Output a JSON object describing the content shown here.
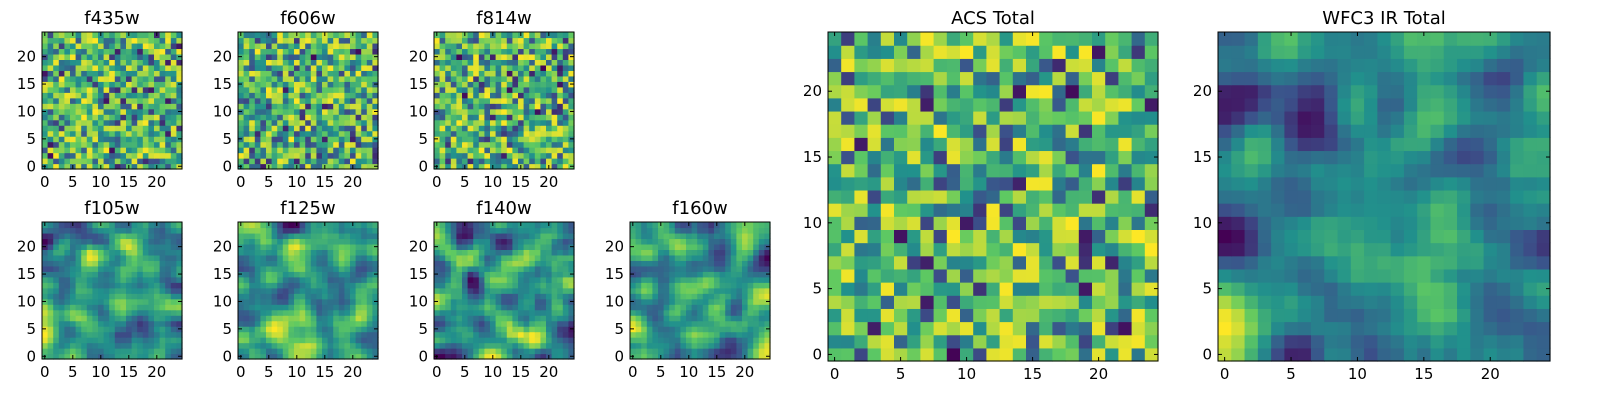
{
  "chart_data": {
    "type": "heatmap",
    "colormap": "viridis",
    "colormap_stops": [
      "#440154",
      "#3b528b",
      "#21918c",
      "#5ec962",
      "#fde725"
    ],
    "grid": false,
    "legend": "none",
    "panels": [
      {
        "title": "f435w",
        "size": 25,
        "xlim": [
          0,
          25
        ],
        "ylim": [
          0,
          25
        ],
        "x_tick_labels": [
          "0",
          "5",
          "10",
          "15",
          "20"
        ],
        "y_tick_labels": [
          "0",
          "5",
          "10",
          "15",
          "20"
        ],
        "pattern": "uniform noise",
        "seed": 101
      },
      {
        "title": "f606w",
        "size": 25,
        "xlim": [
          0,
          25
        ],
        "ylim": [
          0,
          25
        ],
        "x_tick_labels": [
          "0",
          "5",
          "10",
          "15",
          "20"
        ],
        "y_tick_labels": [
          "0",
          "5",
          "10",
          "15",
          "20"
        ],
        "pattern": "uniform noise",
        "seed": 202
      },
      {
        "title": "f814w",
        "size": 25,
        "xlim": [
          0,
          25
        ],
        "ylim": [
          0,
          25
        ],
        "x_tick_labels": [
          "0",
          "5",
          "10",
          "15",
          "20"
        ],
        "y_tick_labels": [
          "0",
          "5",
          "10",
          "15",
          "20"
        ],
        "pattern": "uniform noise",
        "seed": 303
      },
      {
        "title": "f105w",
        "size": 25,
        "xlim": [
          0,
          25
        ],
        "ylim": [
          0,
          25
        ],
        "x_tick_labels": [
          "0",
          "5",
          "10",
          "15",
          "20"
        ],
        "y_tick_labels": [
          "0",
          "5",
          "10",
          "15",
          "20"
        ],
        "pattern": "smooth noise",
        "seed": 404
      },
      {
        "title": "f125w",
        "size": 25,
        "xlim": [
          0,
          25
        ],
        "ylim": [
          0,
          25
        ],
        "x_tick_labels": [
          "0",
          "5",
          "10",
          "15",
          "20"
        ],
        "y_tick_labels": [
          "0",
          "5",
          "10",
          "15",
          "20"
        ],
        "pattern": "smooth noise",
        "seed": 505
      },
      {
        "title": "f140w",
        "size": 25,
        "xlim": [
          0,
          25
        ],
        "ylim": [
          0,
          25
        ],
        "x_tick_labels": [
          "0",
          "5",
          "10",
          "15",
          "20"
        ],
        "y_tick_labels": [
          "0",
          "5",
          "10",
          "15",
          "20"
        ],
        "pattern": "smooth noise",
        "seed": 606
      },
      {
        "title": "f160w",
        "size": 25,
        "xlim": [
          0,
          25
        ],
        "ylim": [
          0,
          25
        ],
        "x_tick_labels": [
          "0",
          "5",
          "10",
          "15",
          "20"
        ],
        "y_tick_labels": [
          "0",
          "5",
          "10",
          "15",
          "20"
        ],
        "pattern": "smooth noise",
        "seed": 707
      },
      {
        "title": "ACS Total",
        "size": 25,
        "xlim": [
          0,
          25
        ],
        "ylim": [
          0,
          25
        ],
        "x_tick_labels": [
          "0",
          "5",
          "10",
          "15",
          "20"
        ],
        "y_tick_labels": [
          "0",
          "5",
          "10",
          "15",
          "20"
        ],
        "pattern": "uniform noise",
        "seed": 808
      },
      {
        "title": "WFC3 IR Total",
        "size": 25,
        "xlim": [
          0,
          25
        ],
        "ylim": [
          0,
          25
        ],
        "x_tick_labels": [
          "0",
          "5",
          "10",
          "15",
          "20"
        ],
        "y_tick_labels": [
          "0",
          "5",
          "10",
          "15",
          "20"
        ],
        "pattern": "smooth noise",
        "seed": 909
      }
    ]
  }
}
